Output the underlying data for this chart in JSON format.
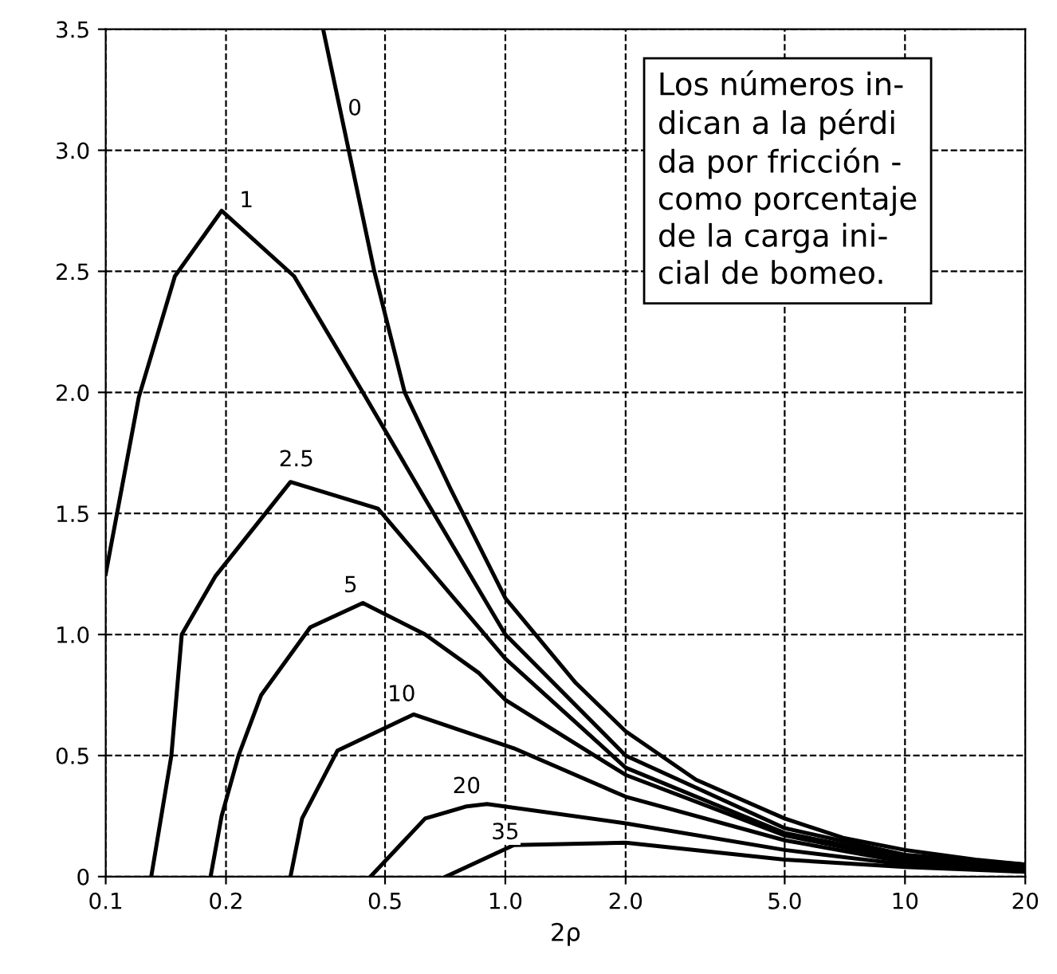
{
  "chart_data": {
    "type": "line",
    "xlabel": "2ρ",
    "log": "x",
    "grid": true,
    "marker": "none",
    "line_style": "solid",
    "legend": false,
    "xlim": [
      0.1,
      20
    ],
    "ylim": [
      0,
      3.5
    ],
    "xticks": [
      {
        "value": 0.1,
        "label": "0.1"
      },
      {
        "value": 0.2,
        "label": "0.2"
      },
      {
        "value": 0.5,
        "label": "0.5"
      },
      {
        "value": 1,
        "label": "1.0"
      },
      {
        "value": 2,
        "label": "2.0"
      },
      {
        "value": 5,
        "label": "5.0"
      },
      10,
      20
    ],
    "yticks": [
      0,
      0.5,
      {
        "value": 1,
        "label": "1.0"
      },
      1.5,
      {
        "value": 2,
        "label": "2.0"
      },
      2.5,
      {
        "value": 3,
        "label": "3.0"
      },
      3.5
    ],
    "series": [
      {
        "color": "#000000",
        "x": [
          0.35,
          0.47,
          0.56,
          0.73,
          1.0,
          1.5,
          2,
          3,
          5,
          7,
          10,
          15,
          20
        ],
        "values": [
          3.5,
          2.5,
          2.0,
          1.6,
          1.15,
          0.8,
          0.6,
          0.4,
          0.24,
          0.16,
          0.11,
          0.07,
          0.05
        ]
      },
      {
        "color": "#000000",
        "x": [
          0.1,
          0.121,
          0.149,
          0.195,
          0.296,
          0.44,
          0.63,
          1.0,
          2,
          5,
          10,
          20
        ],
        "values": [
          1.25,
          1.98,
          2.48,
          2.75,
          2.48,
          2.0,
          1.56,
          1.0,
          0.5,
          0.2,
          0.09,
          0.05
        ]
      },
      {
        "color": "#000000",
        "x": [
          0.13,
          0.146,
          0.155,
          0.188,
          0.29,
          0.48,
          1.0,
          2,
          5,
          10,
          20
        ],
        "values": [
          0,
          0.5,
          1.0,
          1.24,
          1.63,
          1.52,
          0.9,
          0.45,
          0.18,
          0.08,
          0.04
        ]
      },
      {
        "color": "#000000",
        "x": [
          0.183,
          0.195,
          0.215,
          0.245,
          0.325,
          0.44,
          0.63,
          0.86,
          1.0,
          2,
          5,
          10,
          20
        ],
        "values": [
          0,
          0.25,
          0.5,
          0.75,
          1.03,
          1.13,
          1.0,
          0.84,
          0.73,
          0.42,
          0.17,
          0.07,
          0.03
        ]
      },
      {
        "color": "#000000",
        "x": [
          0.29,
          0.31,
          0.38,
          0.59,
          1.05,
          2,
          5,
          10,
          20
        ],
        "values": [
          0,
          0.24,
          0.52,
          0.67,
          0.53,
          0.33,
          0.15,
          0.06,
          0.03
        ]
      },
      {
        "color": "#000000",
        "x": [
          0.46,
          0.63,
          0.8,
          0.9,
          2,
          5,
          10,
          20
        ],
        "values": [
          0,
          0.24,
          0.29,
          0.3,
          0.22,
          0.11,
          0.05,
          0.02
        ]
      },
      {
        "color": "#000000",
        "x": [
          0.71,
          1.05,
          2,
          5,
          10,
          20
        ],
        "values": [
          0,
          0.13,
          0.14,
          0.07,
          0.04,
          0.02
        ]
      }
    ],
    "annotations": [
      {
        "text": "0",
        "x": 0.42,
        "y": 3.17
      },
      {
        "text": "1",
        "x": 0.225,
        "y": 2.79
      },
      {
        "text": "2.5",
        "x": 0.3,
        "y": 1.72
      },
      {
        "text": "5",
        "x": 0.41,
        "y": 1.2
      },
      {
        "text": "10",
        "x": 0.55,
        "y": 0.75
      },
      {
        "text": "20",
        "x": 0.8,
        "y": 0.37
      },
      {
        "text": "35",
        "x": 1.0,
        "y": 0.18
      },
      "Los números in-\ndican a la pérdi\nda por fricción -\ncomo porcentaje\nde la carga ini-\ncial de bomeo."
    ]
  }
}
